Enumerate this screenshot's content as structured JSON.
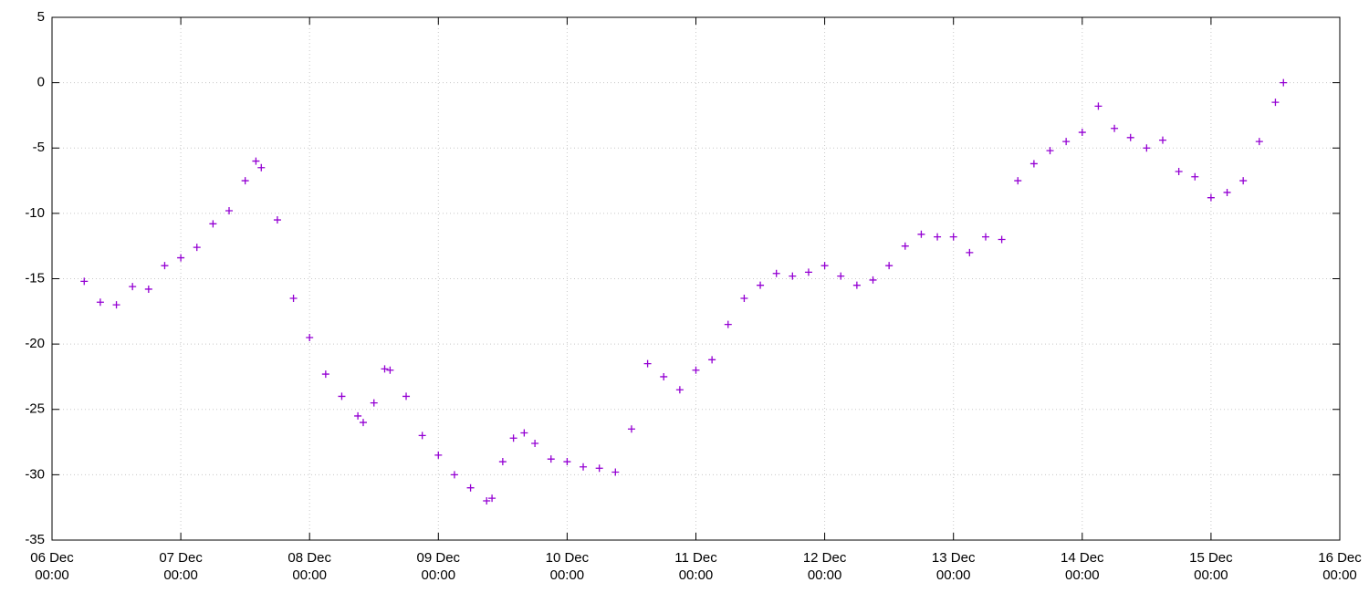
{
  "chart_data": {
    "type": "scatter",
    "marker": "+",
    "color": "#9400d3",
    "grid": true,
    "xlim": [
      "06 Dec\n00:00",
      "16 Dec\n00:00"
    ],
    "xticks": [
      "06 Dec\n00:00",
      "07 Dec\n00:00",
      "08 Dec\n00:00",
      "09 Dec\n00:00",
      "10 Dec\n00:00",
      "11 Dec\n00:00",
      "12 Dec\n00:00",
      "13 Dec\n00:00",
      "14 Dec\n00:00",
      "15 Dec\n00:00",
      "16 Dec\n00:00"
    ],
    "ylim": [
      -35,
      5
    ],
    "yticks": [
      -35,
      -30,
      -25,
      -20,
      -15,
      -10,
      -5,
      0,
      5
    ],
    "x": [
      "06 Dec 06:00",
      "06 Dec 09:00",
      "06 Dec 12:00",
      "06 Dec 15:00",
      "06 Dec 18:00",
      "06 Dec 21:00",
      "07 Dec 00:00",
      "07 Dec 03:00",
      "07 Dec 06:00",
      "07 Dec 09:00",
      "07 Dec 12:00",
      "07 Dec 14:00",
      "07 Dec 15:00",
      "07 Dec 18:00",
      "07 Dec 21:00",
      "08 Dec 00:00",
      "08 Dec 03:00",
      "08 Dec 06:00",
      "08 Dec 09:00",
      "08 Dec 10:00",
      "08 Dec 12:00",
      "08 Dec 14:00",
      "08 Dec 15:00",
      "08 Dec 18:00",
      "08 Dec 21:00",
      "09 Dec 00:00",
      "09 Dec 03:00",
      "09 Dec 06:00",
      "09 Dec 09:00",
      "09 Dec 10:00",
      "09 Dec 12:00",
      "09 Dec 14:00",
      "09 Dec 16:00",
      "09 Dec 18:00",
      "09 Dec 21:00",
      "10 Dec 00:00",
      "10 Dec 03:00",
      "10 Dec 06:00",
      "10 Dec 09:00",
      "10 Dec 12:00",
      "10 Dec 15:00",
      "10 Dec 18:00",
      "10 Dec 21:00",
      "11 Dec 00:00",
      "11 Dec 03:00",
      "11 Dec 06:00",
      "11 Dec 09:00",
      "11 Dec 12:00",
      "11 Dec 15:00",
      "11 Dec 18:00",
      "11 Dec 21:00",
      "12 Dec 00:00",
      "12 Dec 03:00",
      "12 Dec 06:00",
      "12 Dec 09:00",
      "12 Dec 12:00",
      "12 Dec 15:00",
      "12 Dec 18:00",
      "12 Dec 21:00",
      "13 Dec 00:00",
      "13 Dec 03:00",
      "13 Dec 06:00",
      "13 Dec 09:00",
      "13 Dec 12:00",
      "13 Dec 15:00",
      "13 Dec 18:00",
      "13 Dec 21:00",
      "14 Dec 00:00",
      "14 Dec 03:00",
      "14 Dec 06:00",
      "14 Dec 09:00",
      "14 Dec 12:00",
      "14 Dec 15:00",
      "14 Dec 18:00",
      "14 Dec 21:00",
      "15 Dec 00:00",
      "15 Dec 03:00",
      "15 Dec 06:00",
      "15 Dec 09:00",
      "15 Dec 12:00",
      "15 Dec 13:30"
    ],
    "values": [
      -15.2,
      -16.8,
      -17.0,
      -15.6,
      -15.8,
      -14.0,
      -13.4,
      -12.6,
      -10.8,
      -9.8,
      -7.5,
      -6.0,
      -6.5,
      -10.5,
      -16.5,
      -19.5,
      -22.3,
      -24.0,
      -25.5,
      -26.0,
      -24.5,
      -21.9,
      -22.0,
      -24.0,
      -27.0,
      -28.5,
      -30.0,
      -31.0,
      -32.0,
      -31.8,
      -29.0,
      -27.2,
      -26.8,
      -27.6,
      -28.8,
      -29.0,
      -29.4,
      -29.5,
      -29.8,
      -26.5,
      -21.5,
      -22.5,
      -23.5,
      -22.0,
      -21.2,
      -18.5,
      -16.5,
      -15.5,
      -14.6,
      -14.8,
      -14.5,
      -14.0,
      -14.8,
      -15.5,
      -15.1,
      -14.0,
      -12.5,
      -11.6,
      -11.8,
      -11.8,
      -13.0,
      -11.8,
      -12.0,
      -7.5,
      -6.2,
      -5.2,
      -4.5,
      -3.8,
      -1.8,
      -3.5,
      -4.2,
      -5.0,
      -4.4,
      -6.8,
      -7.2,
      -8.8,
      -8.4,
      -7.5,
      -4.5,
      -1.5,
      0.0
    ]
  }
}
